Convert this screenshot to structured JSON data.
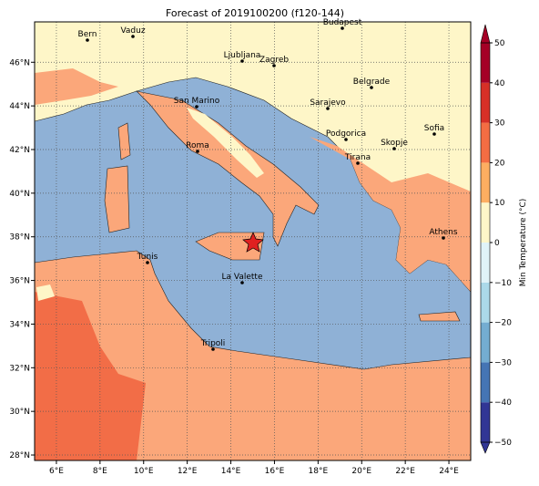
{
  "title": "Forecast of 2019100200 (f120-144)",
  "map": {
    "xlim": [
      5,
      25
    ],
    "ylim": [
      27.75,
      47.85
    ],
    "grid": true,
    "xticks": [
      {
        "value": 6,
        "label": "6°E"
      },
      {
        "value": 8,
        "label": "8°E"
      },
      {
        "value": 10,
        "label": "10°E"
      },
      {
        "value": 12,
        "label": "12°E"
      },
      {
        "value": 14,
        "label": "14°E"
      },
      {
        "value": 16,
        "label": "16°E"
      },
      {
        "value": 18,
        "label": "18°E"
      },
      {
        "value": 20,
        "label": "20°E"
      },
      {
        "value": 22,
        "label": "22°E"
      },
      {
        "value": 24,
        "label": "24°E"
      }
    ],
    "yticks": [
      {
        "value": 28,
        "label": "28°N"
      },
      {
        "value": 30,
        "label": "30°N"
      },
      {
        "value": 32,
        "label": "32°N"
      },
      {
        "value": 34,
        "label": "34°N"
      },
      {
        "value": 36,
        "label": "36°N"
      },
      {
        "value": 38,
        "label": "38°N"
      },
      {
        "value": 40,
        "label": "40°N"
      },
      {
        "value": 42,
        "label": "42°N"
      },
      {
        "value": 44,
        "label": "44°N"
      },
      {
        "value": 46,
        "label": "46°N"
      }
    ]
  },
  "cities": [
    "Bern",
    "Vaduz",
    "Budapest",
    "Ljubljana",
    "Zagreb",
    "Belgrade",
    "San Marino",
    "Sarajevo",
    "Sofia",
    "Podgorica",
    "Skopje",
    "Roma",
    "Tirana",
    "Athens",
    "Tunis",
    "La Valette",
    "Tripoli"
  ],
  "colorbar": {
    "label": "Min Temperature (°C)",
    "lim": [
      -50,
      50
    ],
    "ticks": [
      {
        "value": -50,
        "label": "−50"
      },
      {
        "value": -40,
        "label": "−40"
      },
      {
        "value": -30,
        "label": "−30"
      },
      {
        "value": -20,
        "label": "−20"
      },
      {
        "value": -10,
        "label": "−10"
      },
      0,
      10,
      20,
      30,
      40,
      50
    ],
    "colors": [
      "#313695",
      "#4575b4",
      "#74add1",
      "#abd9e9",
      "#e0f3f8",
      "#fef6c8",
      "#fdae61",
      "#f46d43",
      "#d73027",
      "#a50026"
    ]
  }
}
